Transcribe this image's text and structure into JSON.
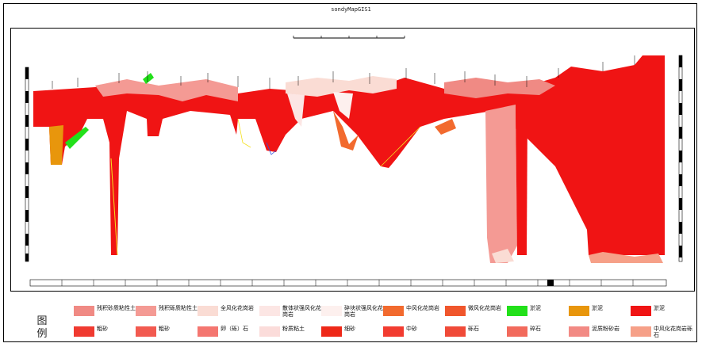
{
  "title": "sondyMapGIS1",
  "legend": {
    "title": "图例",
    "items": [
      {
        "label": "残积砂质粘性土",
        "color": "#f08a84"
      },
      {
        "label": "残积砾质粘性土",
        "color": "#f49a94"
      },
      {
        "label": "全风化花岗岩",
        "color": "#fadcd4"
      },
      {
        "label": "散体状强风化花岗岩",
        "color": "#fce6e4"
      },
      {
        "label": "碎块状强风化花岗岩",
        "color": "#fdf0ee"
      },
      {
        "label": "中风化花岗岩",
        "color": "#f26a2e"
      },
      {
        "label": "微风化花岗岩",
        "color": "#f0562c"
      },
      {
        "label": "淤泥",
        "color": "#22e01a"
      },
      {
        "label": "淤泥",
        "color": "#e8960c"
      },
      {
        "label": "淤泥",
        "color": "#f01414"
      },
      {
        "label": "粗砂",
        "color": "#f03a30"
      },
      {
        "label": "粗砂",
        "color": "#f25a50"
      },
      {
        "label": "卵（砾）石",
        "color": "#f47670"
      },
      {
        "label": "粉质粘土",
        "color": "#fbdcda"
      },
      {
        "label": "细砂",
        "color": "#ee2818"
      },
      {
        "label": "中砂",
        "color": "#f23c30"
      },
      {
        "label": "砾石",
        "color": "#f04a38"
      },
      {
        "label": "碎石",
        "color": "#f26a5c"
      },
      {
        "label": "泥质粉砂岩",
        "color": "#f28a84"
      },
      {
        "label": "中风化花岗岩砾石",
        "color": "#f6a088"
      }
    ]
  },
  "colors": {
    "main_red": "#f01414",
    "pink": "#f49a94",
    "light_pink": "#fadcd4",
    "orange": "#e8960c",
    "green": "#22e01a",
    "dark_orange": "#f26a2e"
  }
}
